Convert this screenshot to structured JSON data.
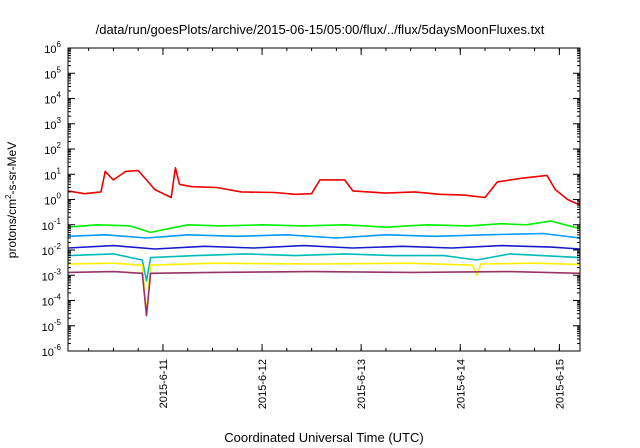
{
  "chart_data": {
    "type": "line",
    "title": "/data/run/goesPlots/archive/2015-06-15/05:00/flux/../flux/5daysMoonFluxes.txt",
    "xlabel": "Coordinated Universal Time (UTC)",
    "ylabel_parts": {
      "pre": "protons/cm",
      "sup": "2",
      "post": "-s-sr-MeV"
    },
    "yscale": "log",
    "ylim_exp": [
      -6,
      6
    ],
    "y_ticks": [
      {
        "base": "10",
        "exp": "-6"
      },
      {
        "base": "10",
        "exp": "-5"
      },
      {
        "base": "10",
        "exp": "-4"
      },
      {
        "base": "10",
        "exp": "-3"
      },
      {
        "base": "10",
        "exp": "-2"
      },
      {
        "base": "10",
        "exp": "-1"
      },
      {
        "base": "10",
        "exp": "0"
      },
      {
        "base": "10",
        "exp": "1"
      },
      {
        "base": "10",
        "exp": "2"
      },
      {
        "base": "10",
        "exp": "3"
      },
      {
        "base": "10",
        "exp": "4"
      },
      {
        "base": "10",
        "exp": "5"
      },
      {
        "base": "10",
        "exp": "6"
      }
    ],
    "xlim": [
      "2015-06-10 01:00",
      "2015-06-15 05:00"
    ],
    "x_ticks": [
      {
        "label": "2015-6-11",
        "at": "2015-06-11 00:00"
      },
      {
        "label": "2015-6-12",
        "at": "2015-06-12 00:00"
      },
      {
        "label": "2015-6-13",
        "at": "2015-06-13 00:00"
      },
      {
        "label": "2015-6-14",
        "at": "2015-06-14 00:00"
      },
      {
        "label": "2015-6-15",
        "at": "2015-06-15 00:00"
      }
    ],
    "grid": false,
    "series": [
      {
        "color": "#ee0000",
        "points": [
          [
            "2015-06-10 01:00",
            2.2
          ],
          [
            "2015-06-10 05:00",
            1.7
          ],
          [
            "2015-06-10 09:00",
            2.0
          ],
          [
            "2015-06-10 10:00",
            13
          ],
          [
            "2015-06-10 12:00",
            6
          ],
          [
            "2015-06-10 15:00",
            13
          ],
          [
            "2015-06-10 18:00",
            14
          ],
          [
            "2015-06-10 20:00",
            6
          ],
          [
            "2015-06-10 22:00",
            2.5
          ],
          [
            "2015-06-11 02:00",
            1.2
          ],
          [
            "2015-06-11 03:00",
            18
          ],
          [
            "2015-06-11 04:00",
            4
          ],
          [
            "2015-06-11 07:00",
            3.2
          ],
          [
            "2015-06-11 13:00",
            3.0
          ],
          [
            "2015-06-11 19:00",
            2.0
          ],
          [
            "2015-06-12 03:00",
            1.9
          ],
          [
            "2015-06-12 08:00",
            1.6
          ],
          [
            "2015-06-12 12:00",
            1.7
          ],
          [
            "2015-06-12 14:00",
            6
          ],
          [
            "2015-06-12 20:00",
            6
          ],
          [
            "2015-06-12 22:00",
            2.2
          ],
          [
            "2015-06-13 06:00",
            1.8
          ],
          [
            "2015-06-13 13:00",
            2.0
          ],
          [
            "2015-06-13 19:00",
            1.6
          ],
          [
            "2015-06-14 01:00",
            1.5
          ],
          [
            "2015-06-14 06:00",
            1.2
          ],
          [
            "2015-06-14 09:00",
            5
          ],
          [
            "2015-06-14 15:00",
            7
          ],
          [
            "2015-06-14 21:00",
            9
          ],
          [
            "2015-06-14 23:00",
            2.5
          ],
          [
            "2015-06-15 02:00",
            1.0
          ],
          [
            "2015-06-15 05:00",
            0.6
          ]
        ]
      },
      {
        "color": "#00ee00",
        "points": [
          [
            "2015-06-10 01:00",
            0.08
          ],
          [
            "2015-06-10 08:00",
            0.1
          ],
          [
            "2015-06-10 16:00",
            0.09
          ],
          [
            "2015-06-10 21:00",
            0.05
          ],
          [
            "2015-06-11 06:00",
            0.1
          ],
          [
            "2015-06-11 14:00",
            0.09
          ],
          [
            "2015-06-12 00:00",
            0.1
          ],
          [
            "2015-06-12 10:00",
            0.09
          ],
          [
            "2015-06-12 20:00",
            0.1
          ],
          [
            "2015-06-13 06:00",
            0.08
          ],
          [
            "2015-06-13 16:00",
            0.1
          ],
          [
            "2015-06-14 02:00",
            0.09
          ],
          [
            "2015-06-14 10:00",
            0.11
          ],
          [
            "2015-06-14 16:00",
            0.1
          ],
          [
            "2015-06-14 22:00",
            0.14
          ],
          [
            "2015-06-15 05:00",
            0.07
          ]
        ]
      },
      {
        "color": "#0099ff",
        "points": [
          [
            "2015-06-10 01:00",
            0.035
          ],
          [
            "2015-06-10 10:00",
            0.04
          ],
          [
            "2015-06-10 20:00",
            0.03
          ],
          [
            "2015-06-11 06:00",
            0.04
          ],
          [
            "2015-06-11 18:00",
            0.035
          ],
          [
            "2015-06-12 06:00",
            0.04
          ],
          [
            "2015-06-12 18:00",
            0.03
          ],
          [
            "2015-06-13 06:00",
            0.04
          ],
          [
            "2015-06-13 18:00",
            0.035
          ],
          [
            "2015-06-14 06:00",
            0.04
          ],
          [
            "2015-06-14 20:00",
            0.045
          ],
          [
            "2015-06-15 05:00",
            0.03
          ]
        ]
      },
      {
        "color": "#1a1acc",
        "points": [
          [
            "2015-06-10 01:00",
            0.012
          ],
          [
            "2015-06-10 12:00",
            0.015
          ],
          [
            "2015-06-10 22:00",
            0.011
          ],
          [
            "2015-06-11 10:00",
            0.014
          ],
          [
            "2015-06-11 22:00",
            0.012
          ],
          [
            "2015-06-12 10:00",
            0.015
          ],
          [
            "2015-06-12 22:00",
            0.012
          ],
          [
            "2015-06-13 10:00",
            0.014
          ],
          [
            "2015-06-13 22:00",
            0.012
          ],
          [
            "2015-06-14 10:00",
            0.015
          ],
          [
            "2015-06-14 22:00",
            0.013
          ],
          [
            "2015-06-15 05:00",
            0.011
          ]
        ]
      },
      {
        "color": "#00bbbb",
        "points": [
          [
            "2015-06-10 01:00",
            0.006
          ],
          [
            "2015-06-10 12:00",
            0.007
          ],
          [
            "2015-06-10 19:00",
            0.004
          ],
          [
            "2015-06-10 20:00",
            0.0006
          ],
          [
            "2015-06-10 21:00",
            0.005
          ],
          [
            "2015-06-11 08:00",
            0.006
          ],
          [
            "2015-06-11 20:00",
            0.007
          ],
          [
            "2015-06-12 08:00",
            0.006
          ],
          [
            "2015-06-12 20:00",
            0.007
          ],
          [
            "2015-06-13 08:00",
            0.006
          ],
          [
            "2015-06-13 20:00",
            0.006
          ],
          [
            "2015-06-14 04:00",
            0.004
          ],
          [
            "2015-06-14 12:00",
            0.007
          ],
          [
            "2015-06-15 05:00",
            0.005
          ]
        ]
      },
      {
        "color": "#ffee00",
        "points": [
          [
            "2015-06-10 01:00",
            0.0028
          ],
          [
            "2015-06-10 12:00",
            0.003
          ],
          [
            "2015-06-10 19:00",
            0.0025
          ],
          [
            "2015-06-10 20:00",
            3e-05
          ],
          [
            "2015-06-10 21:00",
            0.0025
          ],
          [
            "2015-06-11 12:00",
            0.003
          ],
          [
            "2015-06-12 12:00",
            0.0028
          ],
          [
            "2015-06-13 12:00",
            0.003
          ],
          [
            "2015-06-14 03:00",
            0.0025
          ],
          [
            "2015-06-14 04:00",
            0.001
          ],
          [
            "2015-06-14 05:00",
            0.0028
          ],
          [
            "2015-06-14 18:00",
            0.003
          ],
          [
            "2015-06-15 05:00",
            0.0027
          ]
        ]
      },
      {
        "color": "#993366",
        "points": [
          [
            "2015-06-10 01:00",
            0.0013
          ],
          [
            "2015-06-10 12:00",
            0.0014
          ],
          [
            "2015-06-10 19:00",
            0.0012
          ],
          [
            "2015-06-10 20:00",
            2.5e-05
          ],
          [
            "2015-06-10 21:00",
            0.0012
          ],
          [
            "2015-06-11 12:00",
            0.0013
          ],
          [
            "2015-06-12 12:00",
            0.0014
          ],
          [
            "2015-06-13 12:00",
            0.0013
          ],
          [
            "2015-06-14 12:00",
            0.0014
          ],
          [
            "2015-06-15 05:00",
            0.0012
          ]
        ]
      }
    ]
  }
}
